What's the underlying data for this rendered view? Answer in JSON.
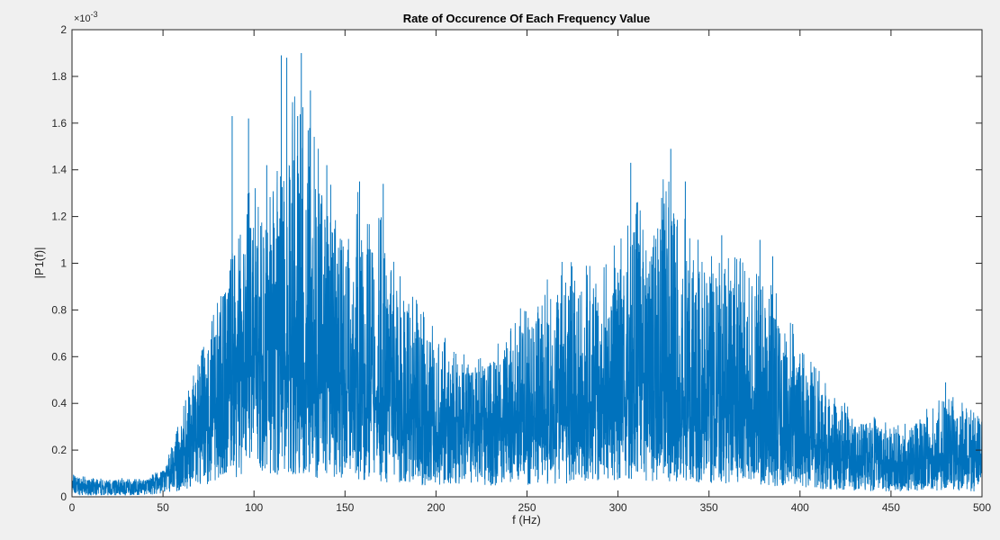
{
  "chart_data": {
    "type": "line",
    "title": "Rate of Occurence Of Each Frequency Value",
    "xlabel": "f (Hz)",
    "ylabel": "|P1(f)|",
    "y_exponent_label": "×10",
    "y_exponent_power": "-3",
    "xlim": [
      0,
      500
    ],
    "ylim": [
      0,
      2
    ],
    "x_ticks": [
      0,
      50,
      100,
      150,
      200,
      250,
      300,
      350,
      400,
      450,
      500
    ],
    "x_tick_labels": [
      "0",
      "50",
      "100",
      "150",
      "200",
      "250",
      "300",
      "350",
      "400",
      "450",
      "500"
    ],
    "y_ticks": [
      0,
      0.2,
      0.4,
      0.6,
      0.8,
      1,
      1.2,
      1.4,
      1.6,
      1.8,
      2
    ],
    "y_tick_labels": [
      "0",
      "0.2",
      "0.4",
      "0.6",
      "0.8",
      "1",
      "1.2",
      "1.4",
      "1.6",
      "1.8",
      "2"
    ],
    "grid": false,
    "color": "#0072BD",
    "series": [
      {
        "envelope": {
          "x": [
            0,
            10,
            20,
            30,
            40,
            50,
            55,
            60,
            65,
            70,
            75,
            80,
            85,
            90,
            95,
            100,
            105,
            110,
            115,
            120,
            125,
            130,
            135,
            140,
            145,
            150,
            155,
            160,
            165,
            170,
            175,
            180,
            185,
            190,
            195,
            200,
            210,
            220,
            230,
            240,
            250,
            260,
            270,
            280,
            290,
            300,
            305,
            310,
            315,
            320,
            325,
            330,
            335,
            340,
            345,
            350,
            355,
            360,
            370,
            380,
            390,
            400,
            410,
            420,
            430,
            440,
            450,
            460,
            470,
            480,
            490,
            500
          ],
          "upper": [
            0.1,
            0.08,
            0.08,
            0.08,
            0.08,
            0.12,
            0.22,
            0.35,
            0.5,
            0.62,
            0.72,
            0.85,
            1.05,
            1.3,
            1.25,
            1.4,
            1.35,
            1.3,
            1.5,
            1.7,
            1.75,
            1.85,
            1.55,
            1.4,
            1.3,
            1.25,
            1.35,
            1.3,
            1.2,
            1.35,
            1.05,
            0.95,
            0.9,
            0.85,
            0.8,
            0.75,
            0.65,
            0.6,
            0.65,
            0.75,
            0.85,
            0.95,
            1.05,
            1.0,
            1.0,
            1.1,
            1.2,
            1.35,
            1.1,
            1.25,
            1.4,
            1.45,
            1.25,
            1.2,
            1.15,
            1.05,
            1.05,
            1.1,
            1.0,
            0.95,
            0.85,
            0.65,
            0.55,
            0.45,
            0.38,
            0.35,
            0.33,
            0.33,
            0.38,
            0.45,
            0.4,
            0.38
          ],
          "base": [
            0.05,
            0.04,
            0.04,
            0.04,
            0.05,
            0.08,
            0.12,
            0.18,
            0.24,
            0.3,
            0.36,
            0.42,
            0.48,
            0.55,
            0.58,
            0.6,
            0.62,
            0.62,
            0.6,
            0.6,
            0.58,
            0.56,
            0.54,
            0.52,
            0.5,
            0.48,
            0.46,
            0.44,
            0.42,
            0.4,
            0.38,
            0.36,
            0.34,
            0.32,
            0.3,
            0.3,
            0.3,
            0.3,
            0.31,
            0.32,
            0.34,
            0.36,
            0.38,
            0.4,
            0.42,
            0.44,
            0.45,
            0.46,
            0.46,
            0.45,
            0.45,
            0.44,
            0.43,
            0.42,
            0.41,
            0.4,
            0.39,
            0.38,
            0.35,
            0.32,
            0.28,
            0.25,
            0.22,
            0.19,
            0.17,
            0.16,
            0.15,
            0.15,
            0.16,
            0.17,
            0.16,
            0.15
          ]
        },
        "peaks": [
          [
            88,
            1.63
          ],
          [
            97,
            1.62
          ],
          [
            115,
            1.89
          ],
          [
            118,
            1.88
          ],
          [
            126,
            1.9
          ],
          [
            131,
            1.74
          ],
          [
            107,
            1.42
          ],
          [
            124,
            1.63
          ],
          [
            140,
            1.42
          ],
          [
            158,
            1.35
          ],
          [
            171,
            1.34
          ],
          [
            307,
            1.43
          ],
          [
            329,
            1.49
          ],
          [
            337,
            1.35
          ],
          [
            324,
            1.28
          ],
          [
            357,
            1.12
          ],
          [
            378,
            1.1
          ],
          [
            385,
            1.03
          ],
          [
            396,
            0.74
          ],
          [
            480,
            0.49
          ]
        ]
      }
    ]
  }
}
